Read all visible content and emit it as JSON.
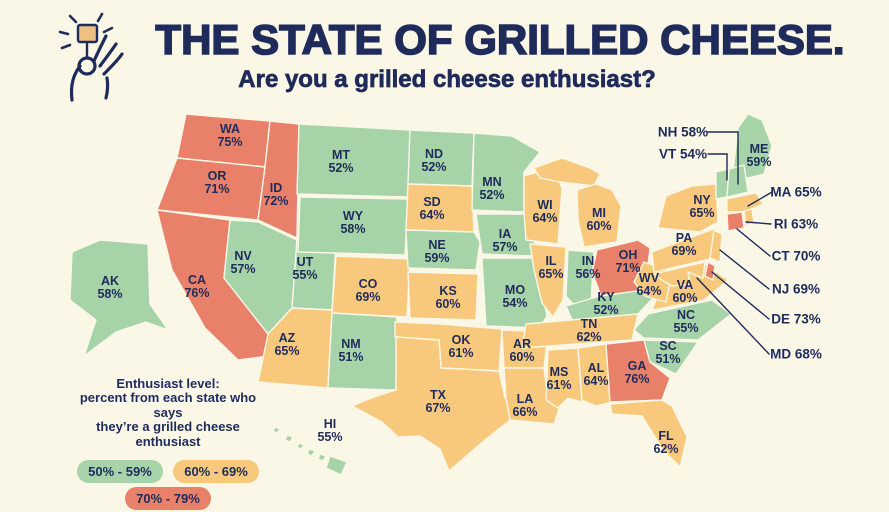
{
  "page": {
    "background": "#FAF7E6"
  },
  "colors": {
    "navy": "#1E2B5B",
    "green": "#A6D3A8",
    "yellow": "#F8C87C",
    "red": "#E8806A",
    "cream": "#FAF7E6",
    "cheese": "#F0C080"
  },
  "header": {
    "icon": "hand-pinching-grilled-cheese-icon",
    "title": "THE STATE OF GRILLED CHEESE.",
    "subtitle": "Are you a grilled cheese enthusiast?"
  },
  "legend": {
    "heading": "Enthusiast level:",
    "description_line1": "percent from each state who says",
    "description_line2": "they’re a grilled cheese enthusiast",
    "ranges": [
      {
        "label": "50% - 59%",
        "min": 50,
        "max": 59,
        "color": "#A6D3A8"
      },
      {
        "label": "60% - 69%",
        "min": 60,
        "max": 69,
        "color": "#F8C87C"
      },
      {
        "label": "70% - 79%",
        "min": 70,
        "max": 79,
        "color": "#E8806A"
      }
    ]
  },
  "chart_data": {
    "type": "choropleth-map",
    "region": "United States",
    "title": "THE STATE OF GRILLED CHEESE.",
    "subtitle": "Are you a grilled cheese enthusiast?",
    "unit": "percent of state residents who say they are grilled cheese enthusiasts",
    "value_range": [
      50,
      79
    ],
    "states": [
      {
        "abbr": "WA",
        "value": 75
      },
      {
        "abbr": "OR",
        "value": 71
      },
      {
        "abbr": "CA",
        "value": 76
      },
      {
        "abbr": "ID",
        "value": 72
      },
      {
        "abbr": "NV",
        "value": 57
      },
      {
        "abbr": "UT",
        "value": 55
      },
      {
        "abbr": "AZ",
        "value": 65
      },
      {
        "abbr": "MT",
        "value": 52
      },
      {
        "abbr": "WY",
        "value": 58
      },
      {
        "abbr": "CO",
        "value": 69
      },
      {
        "abbr": "NM",
        "value": 51
      },
      {
        "abbr": "ND",
        "value": 52
      },
      {
        "abbr": "SD",
        "value": 64
      },
      {
        "abbr": "NE",
        "value": 59
      },
      {
        "abbr": "KS",
        "value": 60
      },
      {
        "abbr": "OK",
        "value": 61
      },
      {
        "abbr": "TX",
        "value": 67
      },
      {
        "abbr": "MN",
        "value": 52
      },
      {
        "abbr": "IA",
        "value": 57
      },
      {
        "abbr": "MO",
        "value": 54
      },
      {
        "abbr": "AR",
        "value": 60
      },
      {
        "abbr": "LA",
        "value": 66
      },
      {
        "abbr": "WI",
        "value": 64
      },
      {
        "abbr": "IL",
        "value": 65
      },
      {
        "abbr": "MI",
        "value": 60
      },
      {
        "abbr": "IN",
        "value": 56
      },
      {
        "abbr": "OH",
        "value": 71
      },
      {
        "abbr": "KY",
        "value": 52
      },
      {
        "abbr": "TN",
        "value": 62
      },
      {
        "abbr": "MS",
        "value": 61
      },
      {
        "abbr": "AL",
        "value": 64
      },
      {
        "abbr": "GA",
        "value": 76
      },
      {
        "abbr": "FL",
        "value": 62
      },
      {
        "abbr": "SC",
        "value": 51
      },
      {
        "abbr": "NC",
        "value": 55
      },
      {
        "abbr": "VA",
        "value": 60
      },
      {
        "abbr": "WV",
        "value": 64
      },
      {
        "abbr": "PA",
        "value": 69
      },
      {
        "abbr": "NY",
        "value": 65
      },
      {
        "abbr": "ME",
        "value": 59
      },
      {
        "abbr": "VT",
        "value": 54
      },
      {
        "abbr": "NH",
        "value": 58
      },
      {
        "abbr": "MA",
        "value": 65
      },
      {
        "abbr": "RI",
        "value": 63
      },
      {
        "abbr": "CT",
        "value": 70
      },
      {
        "abbr": "NJ",
        "value": 69
      },
      {
        "abbr": "DE",
        "value": 73
      },
      {
        "abbr": "MD",
        "value": 68
      },
      {
        "abbr": "AK",
        "value": 58
      },
      {
        "abbr": "HI",
        "value": 55
      }
    ]
  }
}
